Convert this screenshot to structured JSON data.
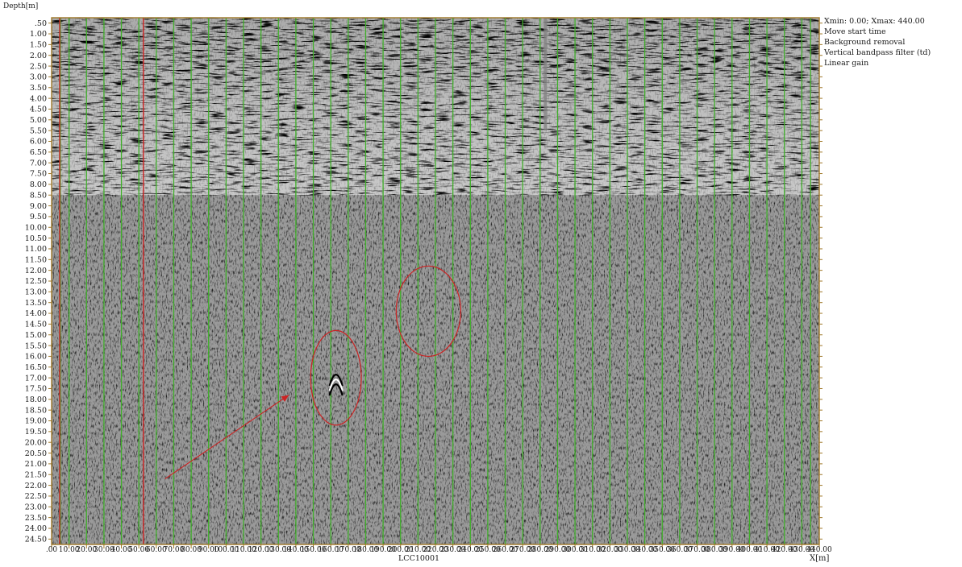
{
  "chart_data": {
    "type": "radargram",
    "title": "",
    "ylabel": "Depth[m]",
    "xlabel": "X[m]",
    "line_name": "LCC10001",
    "xlim": [
      0,
      440
    ],
    "ylim": [
      0.5,
      24.5
    ],
    "y_ticks": [
      ".50",
      "1.00",
      "1.50",
      "2.00",
      "2.50",
      "3.00",
      "3.50",
      "4.00",
      "4.50",
      "5.00",
      "5.50",
      "6.00",
      "6.50",
      "7.00",
      "7.50",
      "8.00",
      "8.50",
      "9.00",
      "9.50",
      "10.00",
      "10.50",
      "11.00",
      "11.50",
      "12.00",
      "12.50",
      "13.00",
      "13.50",
      "14.00",
      "14.50",
      "15.00",
      "15.50",
      "16.00",
      "16.50",
      "17.00",
      "17.50",
      "18.00",
      "18.50",
      "19.00",
      "19.50",
      "20.00",
      "20.50",
      "21.00",
      "21.50",
      "22.00",
      "22.50",
      "23.00",
      "23.50",
      "24.00",
      "24.50"
    ],
    "x_ticks": [
      ".00",
      "10.00",
      "20.00",
      "30.00",
      "40.00",
      "50.00",
      "60.00",
      "70.00",
      "80.00",
      "90.00",
      "100.00",
      "110.00",
      "120.00",
      "130.00",
      "140.00",
      "150.00",
      "160.00",
      "170.00",
      "180.00",
      "190.00",
      "200.00",
      "210.00",
      "220.00",
      "230.00",
      "240.00",
      "250.00",
      "260.00",
      "270.00",
      "280.00",
      "290.00",
      "300.00",
      "310.00",
      "320.00",
      "330.00",
      "340.00",
      "350.00",
      "360.00",
      "370.00",
      "380.00",
      "390.00",
      "400.00",
      "410.00",
      "420.00",
      "430.00",
      "440.00"
    ],
    "marker_lines_x": [
      5,
      10,
      20,
      30,
      40,
      50,
      60,
      70,
      80,
      90,
      100,
      110,
      120,
      130,
      140,
      150,
      160,
      170,
      180,
      190,
      200,
      210,
      220,
      230,
      240,
      250,
      260,
      270,
      280,
      290,
      300,
      310,
      320,
      330,
      340,
      350,
      360,
      370,
      380,
      390,
      400,
      410,
      420,
      430,
      435
    ],
    "red_lines_x": [
      0,
      48
    ],
    "anomalies": [
      {
        "shape": "ellipse",
        "x_center": 163,
        "depth_center": 17.0,
        "x_radius": 14.5,
        "depth_radius": 2.2
      },
      {
        "shape": "ellipse",
        "x_center": 216,
        "depth_center": 13.9,
        "x_radius": 18.5,
        "depth_radius": 2.1
      }
    ],
    "arrow": {
      "from": {
        "x": 65,
        "depth": 21.7
      },
      "to": {
        "x": 136,
        "depth": 17.8
      }
    },
    "grid": false,
    "colors": {
      "marker": "#3fae2a",
      "red": "#cc2222",
      "frame": "#a07828",
      "gray": "#808080"
    }
  },
  "header": {
    "depth_label": "Depth[m]",
    "xrange": "Xmin:   0.00;     Xmax:  440.00"
  },
  "processing_steps": [
    "Move start time",
    "Background removal",
    "Vertical bandpass filter (td)",
    "Linear gain"
  ],
  "footer": {
    "line_name": "LCC10001",
    "x_unit": "X[m]"
  }
}
